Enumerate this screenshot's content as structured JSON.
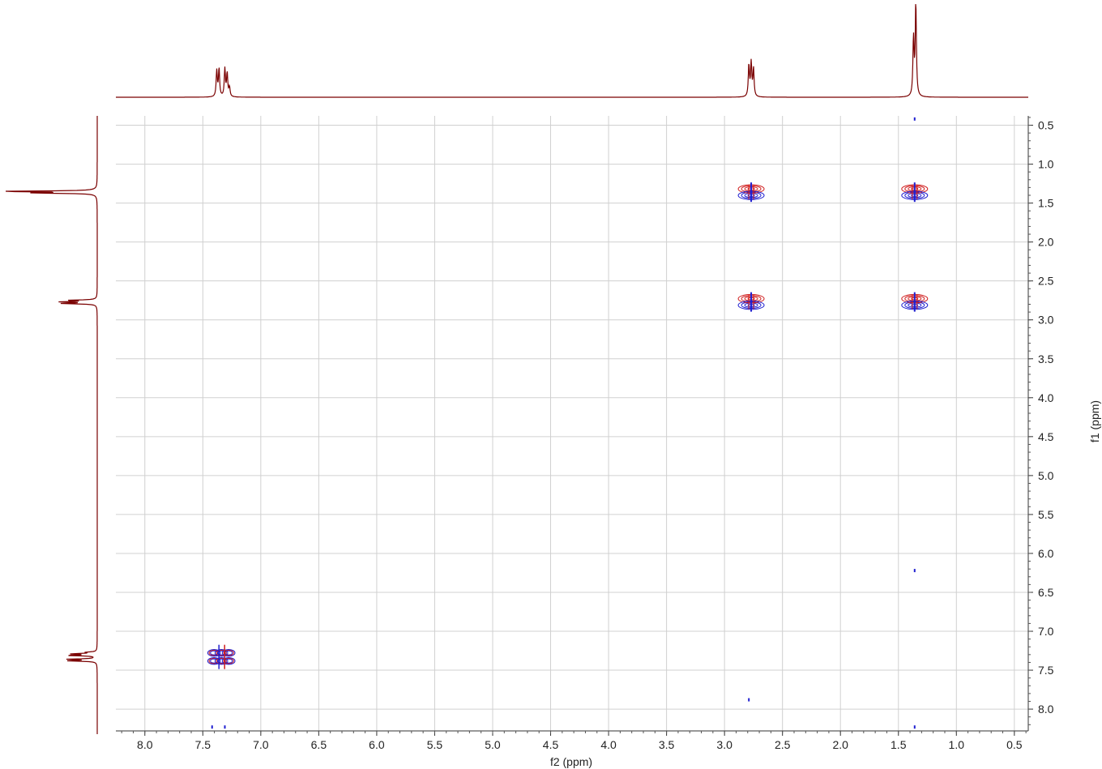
{
  "chart_data": {
    "type": "contour",
    "title": "",
    "xlabel": "f2 (ppm)",
    "ylabel": "f1 (ppm)",
    "xlim": [
      8.25,
      0.38
    ],
    "ylim": [
      0.38,
      8.28
    ],
    "x_ticks": [
      "8.0",
      "7.5",
      "7.0",
      "6.5",
      "6.0",
      "5.5",
      "5.0",
      "4.5",
      "4.0",
      "3.5",
      "3.0",
      "2.5",
      "2.0",
      "1.5",
      "1.0",
      "0.5"
    ],
    "y_ticks": [
      "0.5",
      "1.0",
      "1.5",
      "2.0",
      "2.5",
      "3.0",
      "3.5",
      "4.0",
      "4.5",
      "5.0",
      "5.5",
      "6.0",
      "6.5",
      "7.0",
      "7.5",
      "8.0"
    ],
    "grid": true,
    "positive_color": "#1f1fd0",
    "negative_color": "#d01f1f",
    "projection_color": "#7a0000",
    "projection_peaks": [
      {
        "ppm": 7.38,
        "height": 0.28
      },
      {
        "ppm": 7.36,
        "height": 0.3
      },
      {
        "ppm": 7.31,
        "height": 0.3
      },
      {
        "ppm": 7.29,
        "height": 0.25
      },
      {
        "ppm": 7.27,
        "height": 0.1
      },
      {
        "ppm": 2.79,
        "height": 0.34
      },
      {
        "ppm": 2.77,
        "height": 0.36
      },
      {
        "ppm": 2.75,
        "height": 0.3
      },
      {
        "ppm": 1.37,
        "height": 0.62
      },
      {
        "ppm": 1.35,
        "height": 1.0
      }
    ],
    "cross_peaks": [
      {
        "f2": 2.77,
        "f1": 1.36,
        "size": "large"
      },
      {
        "f2": 1.36,
        "f1": 1.36,
        "size": "large"
      },
      {
        "f2": 2.77,
        "f1": 2.77,
        "size": "large"
      },
      {
        "f2": 1.36,
        "f1": 2.77,
        "size": "large"
      },
      {
        "f2": 7.34,
        "f1": 7.34,
        "size": "xlarge"
      },
      {
        "f2": 2.79,
        "f1": 7.88,
        "size": "tiny"
      },
      {
        "f2": 1.36,
        "f1": 6.22,
        "size": "tiny"
      },
      {
        "f2": 1.36,
        "f1": 0.42,
        "size": "tiny"
      },
      {
        "f2": 1.36,
        "f1": 8.23,
        "size": "tiny"
      },
      {
        "f2": 7.42,
        "f1": 8.23,
        "size": "tiny"
      },
      {
        "f2": 7.31,
        "f1": 8.23,
        "size": "tiny"
      }
    ]
  }
}
